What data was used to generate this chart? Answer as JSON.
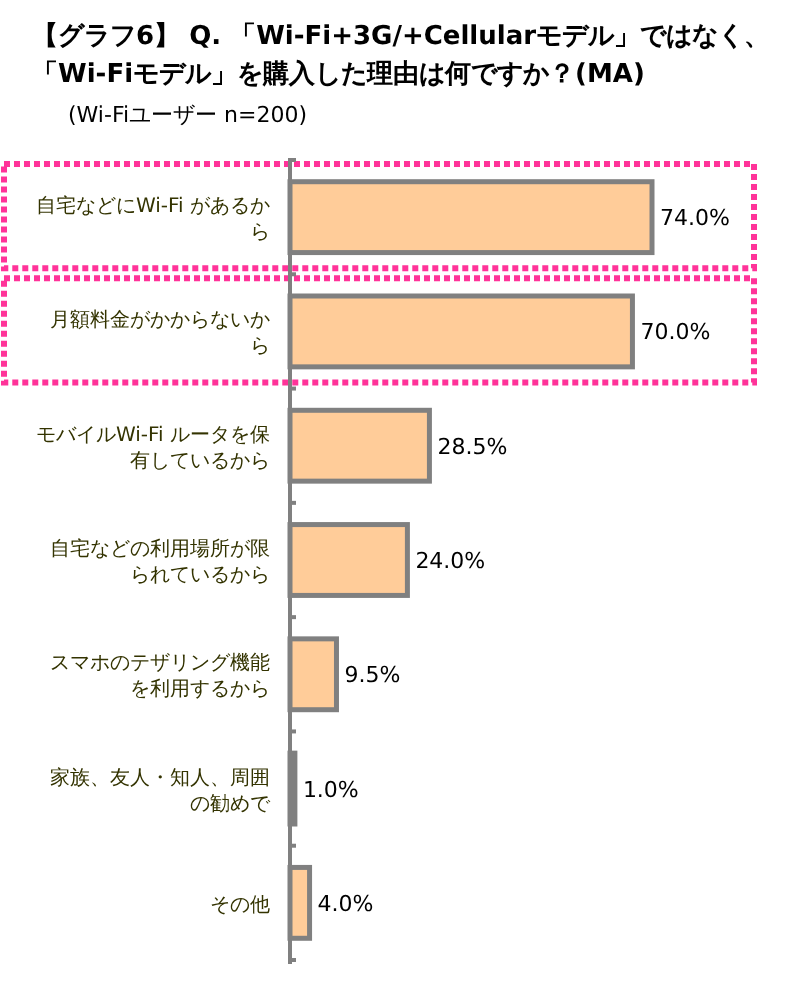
{
  "chart_data": {
    "type": "bar",
    "orientation": "horizontal",
    "title": "【グラフ6】 Q. 「Wi-Fi+3G/+Cellularモデル」ではなく、「Wi-Fiモデル」を購入した理由は何ですか？(MA)",
    "subtitle": "(Wi-Fiユーザー n=200)",
    "categories": [
      "自宅などにWi-Fi があるから",
      "月額料金がかからないから",
      "モバイルWi-Fi ルータを保有しているから",
      "自宅などの利用場所が限られているから",
      "スマホのテザリング機能を利用するから",
      "家族、友人・知人、周囲の勧めで",
      "その他"
    ],
    "values": [
      74.0,
      70.0,
      28.5,
      24.0,
      9.5,
      1.0,
      4.0
    ],
    "value_labels": [
      "74.0%",
      "70.0%",
      "28.5%",
      "24.0%",
      "9.5%",
      "1.0%",
      "4.0%"
    ],
    "color": "#ffcc99"
  }
}
